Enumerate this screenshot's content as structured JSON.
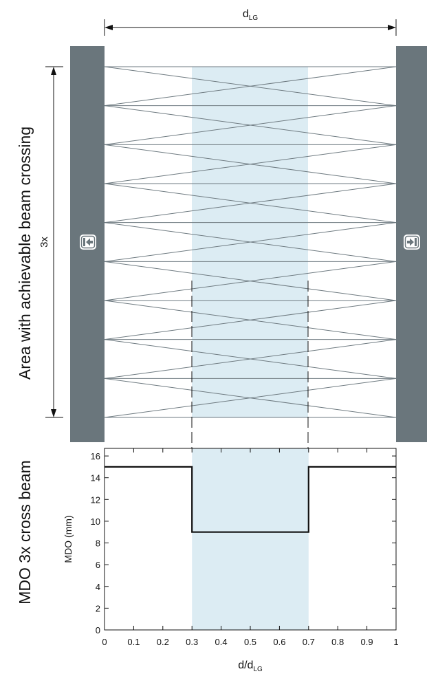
{
  "diagram": {
    "side_label_top": "Area with achievable beam crossing",
    "side_label_bottom": "MDO 3x cross beam",
    "dimension_label_main": "d",
    "dimension_label_sub": "LG",
    "height_label": "3x",
    "sender_icon": "arrow-into-bar-icon",
    "receiver_icon": "arrow-into-bar-icon",
    "colors": {
      "post": "#6a767c",
      "highlight": "#dcecf3",
      "beam": "#6e7a80",
      "line": "#111111"
    },
    "beam_levels": 10,
    "crossing_fraction": 3
  },
  "chart_data": {
    "type": "line",
    "xlabel_main": "d/d",
    "xlabel_sub": "LG",
    "ylabel": "MDO (mm)",
    "xlim": [
      0,
      1
    ],
    "ylim": [
      0,
      16.7
    ],
    "xticks": [
      "0",
      "0.1",
      "0.2",
      "0.3",
      "0.4",
      "0.5",
      "0.6",
      "0.7",
      "0.8",
      "0.9",
      "1"
    ],
    "xtick_values": [
      0,
      0.1,
      0.2,
      0.3,
      0.4,
      0.5,
      0.6,
      0.7,
      0.8,
      0.9,
      1
    ],
    "yticks": [
      "0",
      "2",
      "4",
      "6",
      "8",
      "10",
      "12",
      "14",
      "16"
    ],
    "ytick_values": [
      0,
      2,
      4,
      6,
      8,
      10,
      12,
      14,
      16
    ],
    "highlight_range": [
      0.3,
      0.7
    ],
    "series": [
      {
        "x": [
          0,
          0.3,
          0.3,
          0.7,
          0.7,
          1
        ],
        "y": [
          15,
          15,
          9,
          9,
          15,
          15
        ]
      }
    ],
    "grid": false
  }
}
